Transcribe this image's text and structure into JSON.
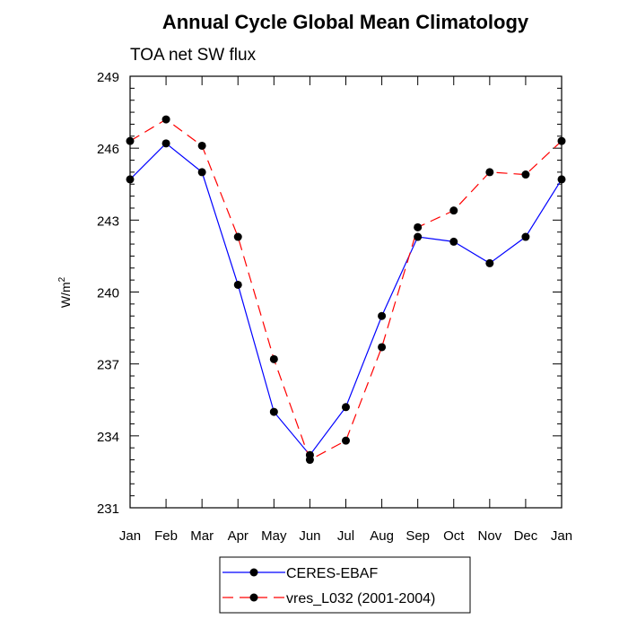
{
  "chart_data": {
    "type": "line",
    "title": "Annual Cycle Global Mean Climatology",
    "subtitle": "TOA net SW flux",
    "ylabel_base": "W/m",
    "ylabel_sup": "2",
    "xlabel": "",
    "categories": [
      "Jan",
      "Feb",
      "Mar",
      "Apr",
      "May",
      "Jun",
      "Jul",
      "Aug",
      "Sep",
      "Oct",
      "Nov",
      "Dec",
      "Jan"
    ],
    "ylim": [
      231,
      249
    ],
    "yticks": [
      231,
      234,
      237,
      240,
      243,
      246,
      249
    ],
    "series": [
      {
        "name": "CERES-EBAF",
        "color": "#0000ff",
        "dash": "solid",
        "values": [
          244.7,
          246.2,
          245.0,
          240.3,
          235.0,
          233.2,
          235.2,
          239.0,
          242.3,
          242.1,
          241.2,
          242.3,
          244.7
        ]
      },
      {
        "name": "vres_L032 (2001-2004)",
        "color": "#ff0000",
        "dash": "dashed",
        "values": [
          246.3,
          247.2,
          246.1,
          242.3,
          237.2,
          233.0,
          233.8,
          237.7,
          242.7,
          243.4,
          245.0,
          244.9,
          246.3
        ]
      }
    ]
  }
}
